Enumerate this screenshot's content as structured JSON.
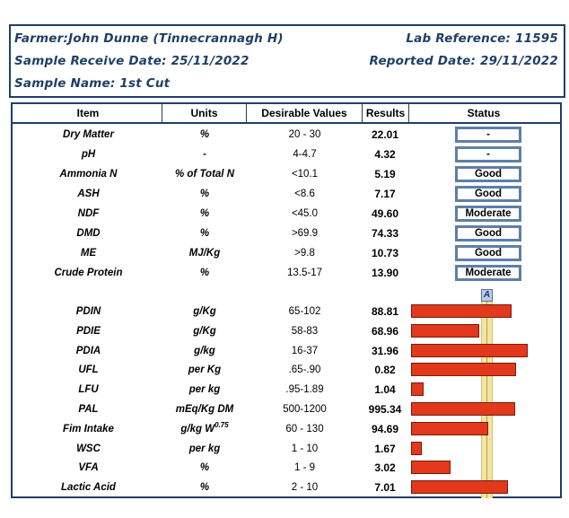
{
  "header": {
    "farmer": "Farmer:John Dunne (Tinnecrannagh H)",
    "sample_receive_date": "Sample Receive Date: 25/11/2022",
    "sample_name": "Sample Name: 1st Cut",
    "lab_reference": "Lab Reference: 11595",
    "reported_date": "Reported Date: 29/11/2022"
  },
  "table": {
    "columns": [
      "Item",
      "Units",
      "Desirable Values",
      "Results",
      "Status"
    ],
    "status_rows": [
      {
        "item": "Dry Matter",
        "units": "%",
        "desirable": "20 - 30",
        "result": "22.01",
        "status": "-"
      },
      {
        "item": "pH",
        "units": "-",
        "desirable": "4-4.7",
        "result": "4.32",
        "status": "-"
      },
      {
        "item": "Ammonia N",
        "units": "% of Total N",
        "desirable": "<10.1",
        "result": "5.19",
        "status": "Good"
      },
      {
        "item": "ASH",
        "units": "%",
        "desirable": "<8.6",
        "result": "7.17",
        "status": "Good"
      },
      {
        "item": "NDF",
        "units": "%",
        "desirable": "<45.0",
        "result": "49.60",
        "status": "Moderate"
      },
      {
        "item": "DMD",
        "units": "%",
        "desirable": ">69.9",
        "result": "74.33",
        "status": "Good"
      },
      {
        "item": "ME",
        "units": "MJ/Kg",
        "desirable": ">9.8",
        "result": "10.73",
        "status": "Good"
      },
      {
        "item": "Crude Protein",
        "units": "%",
        "desirable": "13.5-17",
        "result": "13.90",
        "status": "Moderate"
      }
    ],
    "bar_marker_label": "A",
    "bar_rows": [
      {
        "item": "PDIN",
        "units": "g/Kg",
        "desirable": "65-102",
        "result": "88.81",
        "bar_value": 88.81
      },
      {
        "item": "PDIE",
        "units": "g/Kg",
        "desirable": "58-83",
        "result": "68.96",
        "bar_value": 68.96
      },
      {
        "item": "PDIA",
        "units": "g/kg",
        "desirable": "16-37",
        "result": "31.96",
        "bar_value": 31.96
      },
      {
        "item": "UFL",
        "units": "per Kg",
        "desirable": ".65-.90",
        "result": "0.82",
        "bar_value": 0.82
      },
      {
        "item": "LFU",
        "units": "per kg",
        "desirable": ".95-1.89",
        "result": "1.04",
        "bar_value": 1.04
      },
      {
        "item": "PAL",
        "units": "mEq/Kg DM",
        "desirable": "500-1200",
        "result": "995.34",
        "bar_value": 995.34
      },
      {
        "item": "Fim Intake",
        "units": "g/kg W",
        "units_sup": "0.75",
        "desirable": "60 - 130",
        "result": "94.69",
        "bar_value": 94.69
      },
      {
        "item": "WSC",
        "units": "per kg",
        "desirable": "1 - 10",
        "result": "1.67",
        "bar_value": 1.67
      },
      {
        "item": "VFA",
        "units": "%",
        "desirable": "1 - 9",
        "result": "3.02",
        "bar_value": 3.02
      },
      {
        "item": "Lactic Acid",
        "units": "%",
        "desirable": "2 - 10",
        "result": "7.01",
        "bar_value": 7.01
      }
    ]
  },
  "colors": {
    "frame": "#1f3f66",
    "status_border": "#5d7fa8",
    "bar_fill": "#e2381b",
    "reference_band": "#f3e5a1"
  }
}
